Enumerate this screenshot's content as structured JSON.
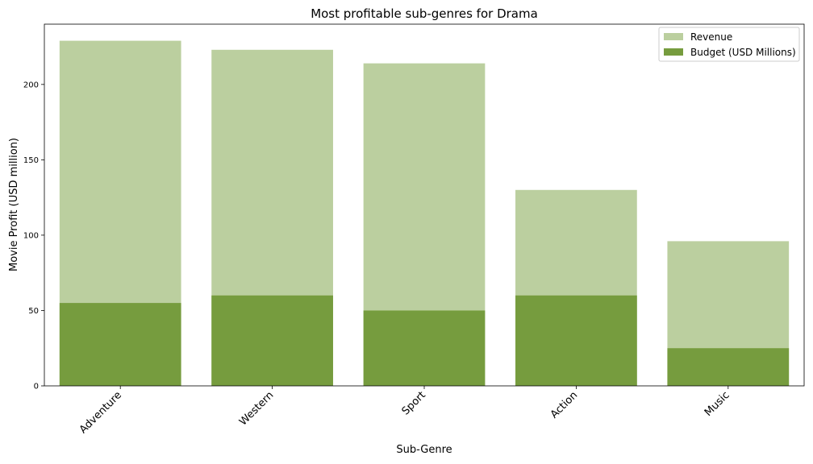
{
  "chart_data": {
    "type": "bar",
    "title": "Most profitable sub-genres for Drama",
    "xlabel": "Sub-Genre",
    "ylabel": "Movie Profit (USD million)",
    "categories": [
      "Adventure",
      "Western",
      "Sport",
      "Action",
      "Music"
    ],
    "series": [
      {
        "name": "Revenue",
        "values": [
          229,
          223,
          214,
          130,
          96
        ],
        "color": "#bbcf9f"
      },
      {
        "name": "Budget (USD Millions)",
        "values": [
          55,
          60,
          50,
          60,
          25
        ],
        "color": "#769c3e"
      }
    ],
    "ylim": [
      0,
      240
    ],
    "yticks": [
      0,
      50,
      100,
      150,
      200
    ],
    "grid": false,
    "legend_position": "top-right"
  }
}
